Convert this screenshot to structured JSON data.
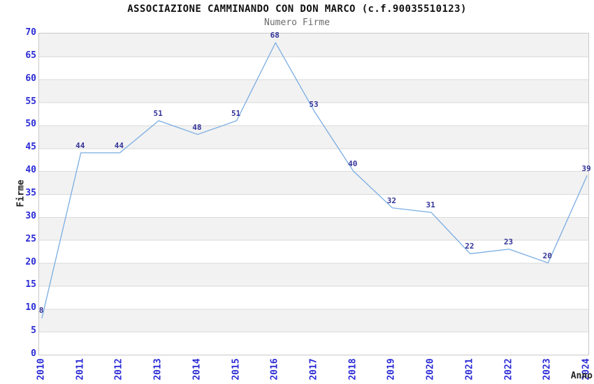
{
  "chart_data": {
    "type": "line",
    "title": "ASSOCIAZIONE CAMMINANDO CON DON MARCO (c.f.90035510123)",
    "subtitle": "Numero Firme",
    "xlabel": "Anno",
    "ylabel": "Firme",
    "categories": [
      "2010",
      "2011",
      "2012",
      "2013",
      "2014",
      "2015",
      "2016",
      "2017",
      "2018",
      "2019",
      "2020",
      "2021",
      "2022",
      "2023",
      "2024"
    ],
    "values": [
      8,
      44,
      44,
      51,
      48,
      51,
      68,
      53,
      40,
      32,
      31,
      22,
      23,
      20,
      39
    ],
    "ylim": [
      0,
      70
    ],
    "ytick_step": 5,
    "legend": "none",
    "grid": "horizontal-bands",
    "colors": {
      "line": "#7aade2",
      "tick_labels": "#2b2bd6",
      "value_labels": "#333399",
      "band": "#f2f2f2",
      "gridline": "#dadada",
      "plot_border": "#c9c9c9",
      "title": "#111111",
      "subtitle": "#6b6b6b",
      "axis_titles": "#222222"
    }
  }
}
